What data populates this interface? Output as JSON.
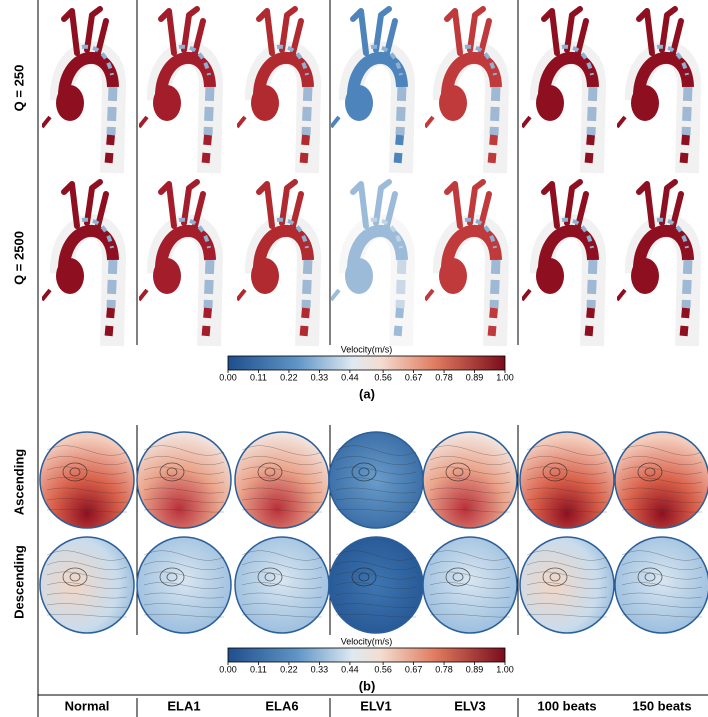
{
  "columns": [
    "Normal",
    "ELA1",
    "ELA6",
    "ELV1",
    "ELV3",
    "100 beats",
    "150 beats"
  ],
  "panel_a": {
    "row_labels": [
      "Q = 250",
      "Q = 2500"
    ],
    "label": "(a)",
    "colorbar": {
      "title": "Velocity(m/s)",
      "range": [
        0,
        1
      ],
      "ticks": [
        {
          "value": 0,
          "label": "0.00"
        },
        {
          "value": 0.11,
          "label": "0.11"
        },
        {
          "value": 0.22,
          "label": "0.22"
        },
        {
          "value": 0.33,
          "label": "0.33"
        },
        {
          "value": 0.44,
          "label": "0.44"
        },
        {
          "value": 0.56,
          "label": "0.56"
        },
        {
          "value": 0.67,
          "label": "0.67"
        },
        {
          "value": 0.78,
          "label": "0.78"
        },
        {
          "value": 0.89,
          "label": "0.89"
        },
        {
          "value": 1,
          "label": "1.00"
        }
      ]
    }
  },
  "panel_b": {
    "row_labels": [
      "Ascending",
      "Descending"
    ],
    "label": "(b)",
    "colorbar": {
      "title": "Velocity(m/s)",
      "range": [
        0,
        1
      ],
      "ticks": [
        {
          "value": 0,
          "label": "0.00"
        },
        {
          "value": 0.11,
          "label": "0.11"
        },
        {
          "value": 0.22,
          "label": "0.22"
        },
        {
          "value": 0.33,
          "label": "0.33"
        },
        {
          "value": 0.44,
          "label": "0.44"
        },
        {
          "value": 0.56,
          "label": "0.56"
        },
        {
          "value": 0.67,
          "label": "0.67"
        },
        {
          "value": 0.78,
          "label": "0.78"
        },
        {
          "value": 0.89,
          "label": "0.89"
        },
        {
          "value": 1,
          "label": "1.00"
        }
      ]
    }
  }
}
